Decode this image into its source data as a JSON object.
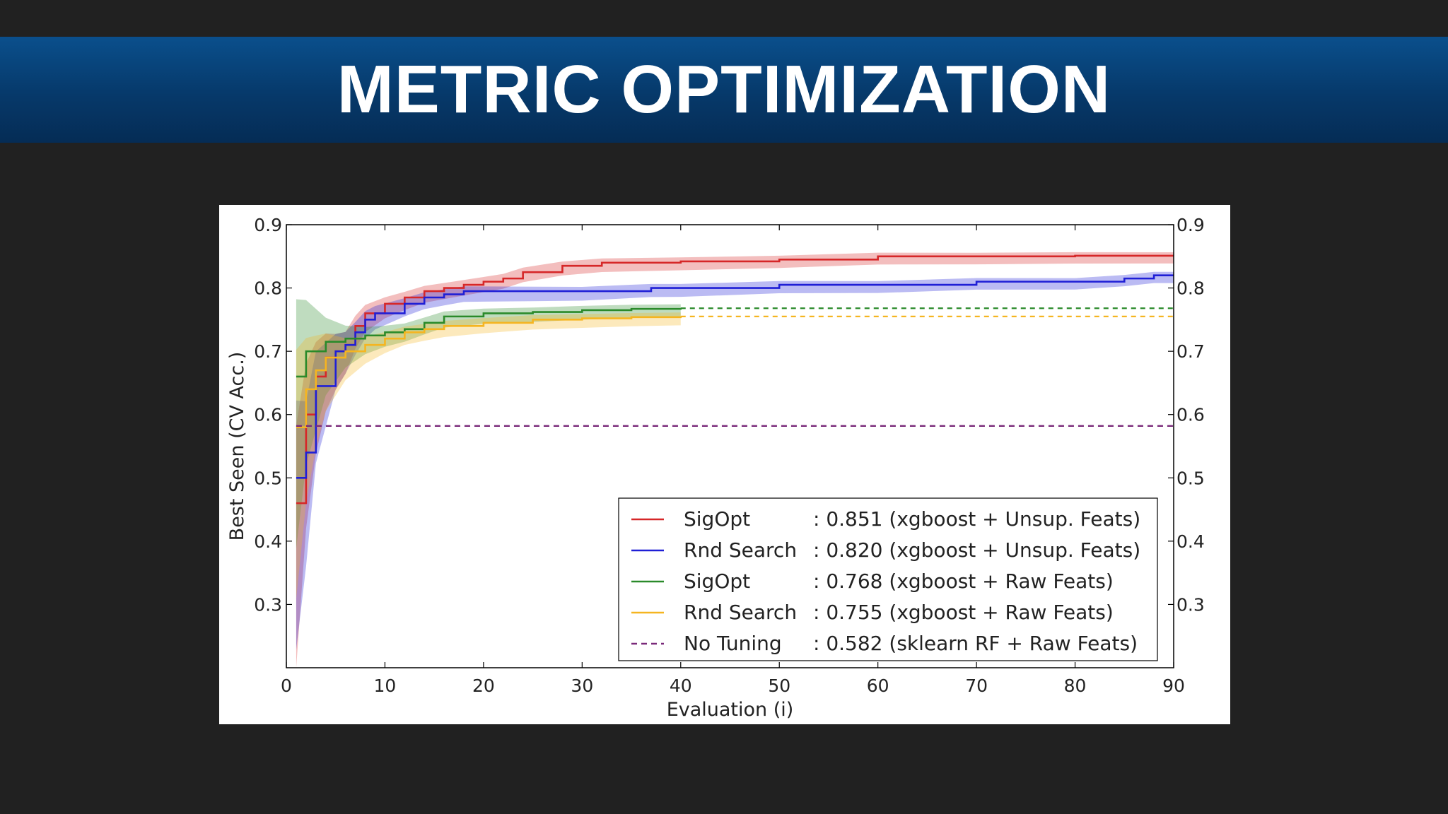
{
  "slide": {
    "title": "METRIC OPTIMIZATION"
  },
  "chart_data": {
    "type": "line",
    "title": "",
    "xlabel": "Evaluation (i)",
    "ylabel": "Best Seen (CV Acc.)",
    "xlim": [
      0,
      90
    ],
    "ylim": [
      0.2,
      0.9
    ],
    "xticks": [
      "0",
      "10",
      "20",
      "30",
      "40",
      "50",
      "60",
      "70",
      "80",
      "90"
    ],
    "yticks": [
      "0.3",
      "0.4",
      "0.5",
      "0.6",
      "0.7",
      "0.8",
      "0.9"
    ],
    "grid": false,
    "legend_position": "lower-right",
    "series": [
      {
        "name": "SigOpt",
        "result": ": 0.851 (xgboost + Unsup. Feats)",
        "color": "#d62728",
        "style": "solid",
        "band": true,
        "x": [
          1,
          2,
          3,
          4,
          5,
          6,
          7,
          8,
          10,
          12,
          14,
          16,
          18,
          20,
          22,
          24,
          28,
          32,
          40,
          50,
          60,
          70,
          80,
          90
        ],
        "y": [
          0.46,
          0.6,
          0.66,
          0.69,
          0.7,
          0.71,
          0.74,
          0.76,
          0.775,
          0.785,
          0.795,
          0.8,
          0.805,
          0.81,
          0.815,
          0.825,
          0.835,
          0.84,
          0.842,
          0.845,
          0.85,
          0.85,
          0.851,
          0.851
        ]
      },
      {
        "name": "Rnd Search",
        "result": ": 0.820 (xgboost + Unsup. Feats)",
        "color": "#1f1fd6",
        "style": "solid",
        "band": true,
        "x": [
          1,
          2,
          3,
          5,
          6,
          7,
          8,
          9,
          12,
          14,
          16,
          18,
          20,
          30,
          37,
          40,
          50,
          60,
          70,
          80,
          85,
          88,
          90
        ],
        "y": [
          0.5,
          0.54,
          0.645,
          0.7,
          0.71,
          0.73,
          0.75,
          0.76,
          0.775,
          0.785,
          0.79,
          0.795,
          0.795,
          0.795,
          0.8,
          0.8,
          0.805,
          0.805,
          0.81,
          0.81,
          0.815,
          0.82,
          0.82
        ]
      },
      {
        "name": "SigOpt",
        "result": ": 0.768 (xgboost + Raw Feats)",
        "color": "#2a8a2a",
        "style": "solid",
        "band": true,
        "extends_to": 90,
        "x": [
          1,
          2,
          4,
          6,
          8,
          10,
          12,
          14,
          16,
          20,
          25,
          30,
          35,
          40
        ],
        "y": [
          0.66,
          0.7,
          0.715,
          0.72,
          0.725,
          0.73,
          0.735,
          0.745,
          0.755,
          0.76,
          0.762,
          0.765,
          0.767,
          0.768
        ]
      },
      {
        "name": "Rnd Search",
        "result": ": 0.755 (xgboost + Raw Feats)",
        "color": "#f5b520",
        "style": "solid",
        "band": true,
        "extends_to": 90,
        "x": [
          1,
          2,
          3,
          4,
          6,
          8,
          10,
          12,
          14,
          16,
          20,
          25,
          30,
          35,
          40
        ],
        "y": [
          0.58,
          0.64,
          0.67,
          0.69,
          0.7,
          0.71,
          0.72,
          0.73,
          0.735,
          0.74,
          0.745,
          0.75,
          0.752,
          0.754,
          0.755
        ]
      },
      {
        "name": "No Tuning",
        "result": ": 0.582 (sklearn RF + Raw Feats)",
        "color": "#7a2a7a",
        "style": "dashed",
        "band": false,
        "x": [
          1,
          90
        ],
        "y": [
          0.582,
          0.582
        ]
      }
    ]
  }
}
